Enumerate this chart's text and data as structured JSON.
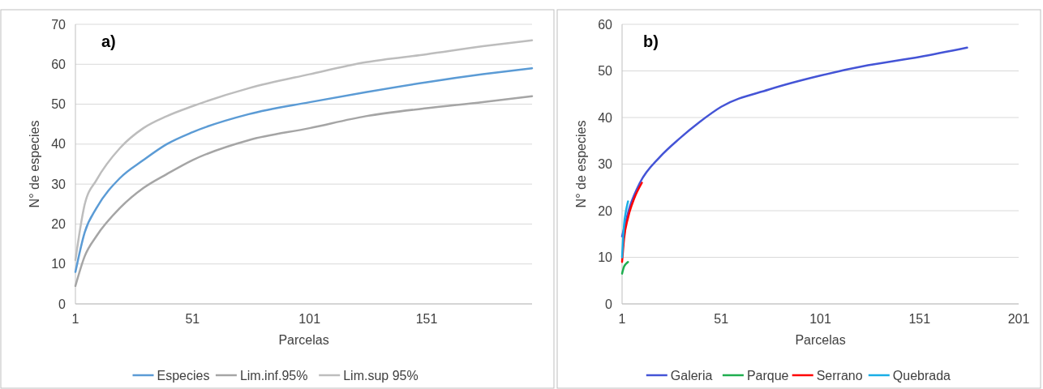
{
  "chart_data": [
    {
      "type": "line",
      "annotations": [
        "a)"
      ],
      "xlabel": "Parcelas",
      "ylabel": "N° de especies",
      "xlim": [
        1,
        196
      ],
      "xticks": [
        1,
        51,
        101,
        151
      ],
      "ylim": [
        0,
        70
      ],
      "yticks": [
        0,
        10,
        20,
        30,
        40,
        50,
        60,
        70
      ],
      "grid": "y",
      "legend": "bottom",
      "x": [
        1,
        5,
        10,
        20,
        30,
        40,
        51,
        75,
        101,
        125,
        151,
        175,
        196
      ],
      "series": [
        {
          "name": "Especies",
          "color": "#5b9bd5",
          "values": [
            8,
            18,
            24,
            31.5,
            36,
            40,
            43,
            47.5,
            50.5,
            53,
            55.5,
            57.5,
            59
          ]
        },
        {
          "name": "Lim.inf.95%",
          "color": "#a5a5a5",
          "values": [
            4.5,
            12,
            17,
            24,
            29,
            32.5,
            36,
            41,
            44,
            47,
            49,
            50.5,
            52
          ]
        },
        {
          "name": "Lim.sup 95%",
          "color": "#bdbdbd",
          "values": [
            11,
            25,
            31,
            39,
            44,
            47,
            49.5,
            54,
            57.5,
            60.5,
            62.5,
            64.5,
            66
          ]
        }
      ]
    },
    {
      "type": "line",
      "annotations": [
        "b)"
      ],
      "xlabel": "Parcelas",
      "ylabel": "N° de especies",
      "xlim": [
        1,
        201
      ],
      "xticks": [
        1,
        51,
        101,
        151,
        201
      ],
      "ylim": [
        0,
        60
      ],
      "yticks": [
        0,
        10,
        20,
        30,
        40,
        50,
        60
      ],
      "grid": "y",
      "legend": "bottom",
      "series": [
        {
          "name": "Galeria",
          "color": "#4454d6",
          "x": [
            1,
            5,
            10,
            20,
            30,
            40,
            51,
            75,
            101,
            125,
            151,
            175
          ],
          "values": [
            14.5,
            21,
            26,
            31.5,
            35.5,
            39,
            42.3,
            46,
            49,
            51.2,
            53,
            55
          ]
        },
        {
          "name": "Parque",
          "color": "#1fae4f",
          "x": [
            1,
            2,
            3,
            4
          ],
          "values": [
            6.5,
            8,
            8.6,
            9
          ]
        },
        {
          "name": "Serrano",
          "color": "#ff0000",
          "x": [
            1,
            2,
            4,
            7,
            11
          ],
          "values": [
            9,
            14,
            18.5,
            22.5,
            26
          ]
        },
        {
          "name": "Quebrada",
          "color": "#19aee6",
          "x": [
            1,
            2,
            3,
            4
          ],
          "values": [
            10,
            17,
            20,
            22
          ]
        }
      ]
    }
  ]
}
